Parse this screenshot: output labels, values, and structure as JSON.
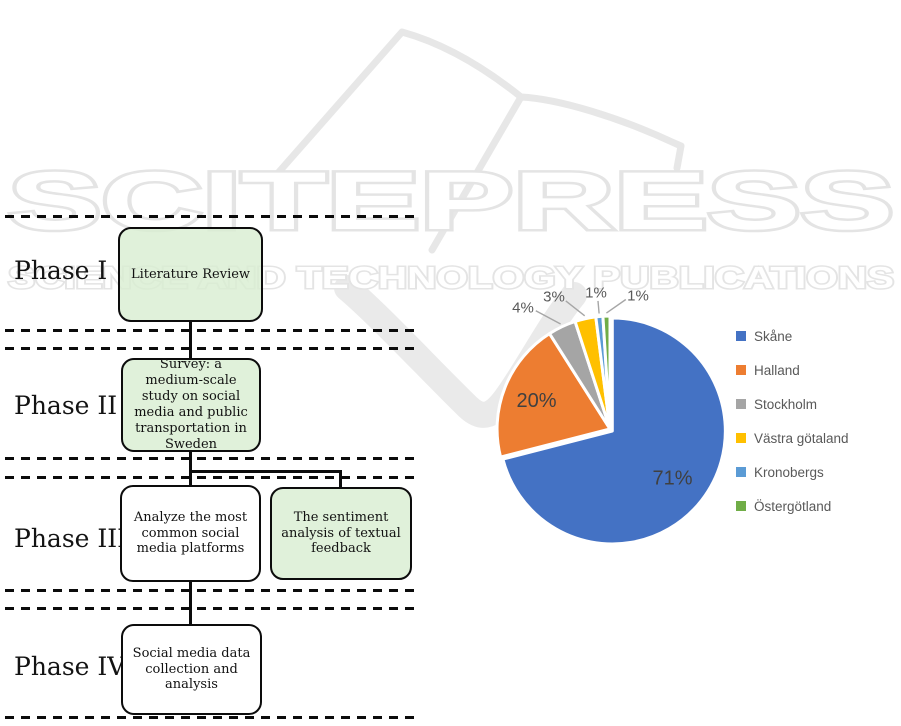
{
  "watermark": {
    "brand": "SCITEPRESS",
    "tagline": "SCIENCE AND TECHNOLOGY PUBLICATIONS",
    "color": "#e5e5e5"
  },
  "flowchart": {
    "colors": {
      "green_fill": "#d9eed2",
      "border": "#0c0c0c"
    },
    "phases": [
      {
        "label": "Phase I",
        "boxes": [
          {
            "text": "Literature Review",
            "fill": "green"
          }
        ]
      },
      {
        "label": "Phase II",
        "boxes": [
          {
            "text": "Survey: a medium-scale study on social media and public transportation in Sweden",
            "fill": "green"
          }
        ]
      },
      {
        "label": "Phase III",
        "boxes": [
          {
            "text": "Analyze the most common social media platforms",
            "fill": "white"
          },
          {
            "text": "The sentiment analysis of textual feedback",
            "fill": "green"
          }
        ]
      },
      {
        "label": "Phase IV",
        "boxes": [
          {
            "text": "Social media data collection and analysis",
            "fill": "white"
          }
        ]
      }
    ]
  },
  "chart_data": {
    "type": "pie",
    "categories": [
      "Skåne",
      "Halland",
      "Stockholm",
      "Västra götaland",
      "Kronobergs",
      "Östergötland"
    ],
    "values": [
      71,
      20,
      4,
      3,
      1,
      1
    ],
    "labels": [
      "71%",
      "20%",
      "4%",
      "3%",
      "1%",
      "1%"
    ],
    "colors": [
      "#4472C4",
      "#ED7D31",
      "#A5A5A5",
      "#FFC000",
      "#5B9BD5",
      "#70AD47"
    ],
    "legend_position": "right",
    "start_angle_deg": 0,
    "direction": "clockwise",
    "inside_label_color": "#404040",
    "outside_label_color": "#595959",
    "leader_line_color": "#a6a6a6",
    "slice_border_color": "#ffffff"
  }
}
